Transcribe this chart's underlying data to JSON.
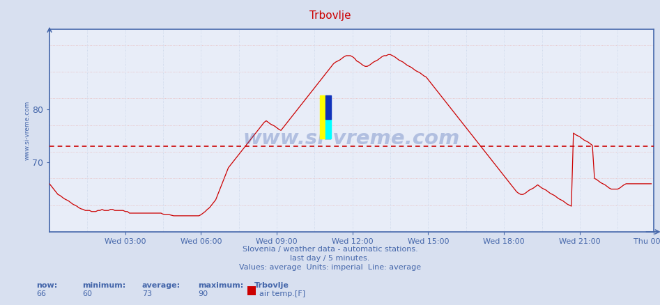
{
  "title": "Trbovlje",
  "title_color": "#cc0000",
  "bg_color": "#d8e0f0",
  "plot_bg_color": "#e8edf8",
  "axis_color": "#4466aa",
  "text_color": "#4466aa",
  "line_color": "#cc0000",
  "avg_line_value": 73,
  "avg_line_color": "#cc0000",
  "grid_color": "#c8d4e8",
  "grid_color_h": "#e8b0b0",
  "ylabel_text": "www.si-vreme.com",
  "watermark": "www.si-vreme.com",
  "subtitle1": "Slovenia / weather data - automatic stations.",
  "subtitle2": "last day / 5 minutes.",
  "subtitle3": "Values: average  Units: imperial  Line: average",
  "footer_now_label": "now:",
  "footer_min_label": "minimum:",
  "footer_avg_label": "average:",
  "footer_max_label": "maximum:",
  "footer_station": "Trbovlje",
  "footer_now": 66,
  "footer_min": 60,
  "footer_avg": 73,
  "footer_max": 90,
  "footer_series": "air temp.[F]",
  "footer_swatch_color": "#cc0000",
  "ylim_min": 57,
  "ylim_max": 95,
  "ytick_positions": [
    70,
    80
  ],
  "xtick_labels": [
    "Wed 03:00",
    "Wed 06:00",
    "Wed 09:00",
    "Wed 12:00",
    "Wed 15:00",
    "Wed 18:00",
    "Wed 21:00",
    "Thu 00:00"
  ],
  "xtick_positions": [
    36,
    72,
    108,
    144,
    180,
    216,
    252,
    287
  ],
  "num_points": 288,
  "temperature_data": [
    66.0,
    65.5,
    65.0,
    64.5,
    64.0,
    63.8,
    63.5,
    63.2,
    63.0,
    62.8,
    62.5,
    62.2,
    62.0,
    61.8,
    61.5,
    61.3,
    61.2,
    61.0,
    61.0,
    61.0,
    60.8,
    60.8,
    60.8,
    61.0,
    61.0,
    61.2,
    61.0,
    61.0,
    61.0,
    61.2,
    61.2,
    61.0,
    61.0,
    61.0,
    61.0,
    61.0,
    60.8,
    60.8,
    60.5,
    60.5,
    60.5,
    60.5,
    60.5,
    60.5,
    60.5,
    60.5,
    60.5,
    60.5,
    60.5,
    60.5,
    60.5,
    60.5,
    60.5,
    60.5,
    60.3,
    60.2,
    60.2,
    60.2,
    60.1,
    60.0,
    60.0,
    60.0,
    60.0,
    60.0,
    60.0,
    60.0,
    60.0,
    60.0,
    60.0,
    60.0,
    60.0,
    60.0,
    60.2,
    60.5,
    60.8,
    61.2,
    61.5,
    62.0,
    62.5,
    63.0,
    64.0,
    65.0,
    66.0,
    67.0,
    68.0,
    69.0,
    69.5,
    70.0,
    70.5,
    71.0,
    71.5,
    72.0,
    72.5,
    73.0,
    73.5,
    74.0,
    74.5,
    75.0,
    75.5,
    76.0,
    76.5,
    77.0,
    77.5,
    77.8,
    77.5,
    77.2,
    77.0,
    76.8,
    76.5,
    76.2,
    76.0,
    76.5,
    77.0,
    77.5,
    78.0,
    78.5,
    79.0,
    79.5,
    80.0,
    80.5,
    81.0,
    81.5,
    82.0,
    82.5,
    83.0,
    83.5,
    84.0,
    84.5,
    85.0,
    85.5,
    86.0,
    86.5,
    87.0,
    87.5,
    88.0,
    88.5,
    88.8,
    89.0,
    89.2,
    89.5,
    89.8,
    90.0,
    90.0,
    90.0,
    89.8,
    89.5,
    89.0,
    88.8,
    88.5,
    88.2,
    88.0,
    88.0,
    88.2,
    88.5,
    88.8,
    89.0,
    89.2,
    89.5,
    89.8,
    90.0,
    90.0,
    90.2,
    90.2,
    90.0,
    89.8,
    89.5,
    89.2,
    89.0,
    88.8,
    88.5,
    88.2,
    88.0,
    87.8,
    87.5,
    87.2,
    87.0,
    86.8,
    86.5,
    86.2,
    86.0,
    85.5,
    85.0,
    84.5,
    84.0,
    83.5,
    83.0,
    82.5,
    82.0,
    81.5,
    81.0,
    80.5,
    80.0,
    79.5,
    79.0,
    78.5,
    78.0,
    77.5,
    77.0,
    76.5,
    76.0,
    75.5,
    75.0,
    74.5,
    74.0,
    73.5,
    73.0,
    72.5,
    72.0,
    71.5,
    71.0,
    70.5,
    70.0,
    69.5,
    69.0,
    68.5,
    68.0,
    67.5,
    67.0,
    66.5,
    66.0,
    65.5,
    65.0,
    64.5,
    64.2,
    64.0,
    64.0,
    64.2,
    64.5,
    64.8,
    65.0,
    65.2,
    65.5,
    65.8,
    65.5,
    65.2,
    65.0,
    64.8,
    64.5,
    64.2,
    64.0,
    63.8,
    63.5,
    63.2,
    63.0,
    62.8,
    62.5,
    62.2,
    62.0,
    61.8,
    75.5,
    75.2,
    75.0,
    74.8,
    74.5,
    74.2,
    74.0,
    73.8,
    73.5,
    73.2,
    67.0,
    66.8,
    66.5,
    66.2,
    66.0,
    65.8,
    65.5,
    65.2,
    65.0,
    65.0,
    65.0,
    65.0,
    65.2,
    65.5,
    65.8,
    66.0,
    66.0,
    66.0,
    66.0,
    66.0,
    66.0,
    66.0,
    66.0,
    66.0,
    66.0,
    66.0,
    66.0,
    66.0
  ]
}
